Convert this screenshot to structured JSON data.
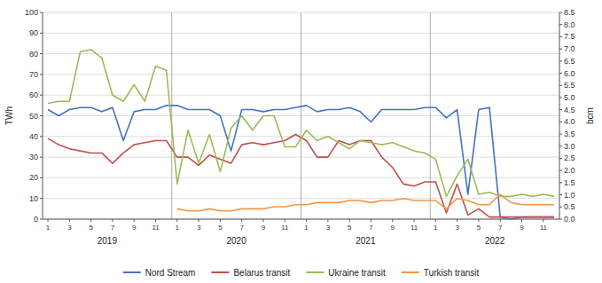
{
  "chart_data": {
    "type": "line",
    "categories": [
      "1",
      null,
      "3",
      null,
      "5",
      null,
      "7",
      null,
      "9",
      null,
      "11",
      null,
      "1",
      null,
      "3",
      null,
      "5",
      null,
      "7",
      null,
      "9",
      null,
      "11",
      null,
      "1",
      null,
      "3",
      null,
      "5",
      null,
      "7",
      null,
      "9",
      null,
      "11",
      null,
      "1",
      null,
      "3",
      null,
      "5",
      null,
      "7",
      null,
      "9",
      null,
      "11",
      null
    ],
    "category_groups": [
      2019,
      2020,
      2021,
      2022
    ],
    "series": [
      {
        "name": "Nord Stream",
        "color": "#4472C4",
        "values": [
          53,
          50,
          53,
          54,
          54,
          52,
          54,
          38,
          52,
          53,
          53,
          55,
          55,
          53,
          53,
          53,
          50,
          33,
          53,
          53,
          52,
          53,
          53,
          54,
          55,
          52,
          53,
          53,
          54,
          52,
          47,
          53,
          53,
          53,
          53,
          54,
          54,
          49,
          53,
          12,
          53,
          54,
          1,
          0,
          1,
          1,
          1,
          1
        ]
      },
      {
        "name": "Belarus transit",
        "color": "#C0504D",
        "values": [
          39,
          36,
          34,
          33,
          32,
          32,
          27,
          32,
          36,
          37,
          38,
          38,
          30,
          30,
          26,
          31,
          29,
          27,
          36,
          37,
          36,
          37,
          38,
          41,
          38,
          30,
          30,
          38,
          36,
          38,
          38,
          30,
          25,
          17,
          16,
          18,
          18,
          3,
          17,
          2,
          5,
          1,
          1,
          1,
          1,
          1,
          1,
          1
        ]
      },
      {
        "name": "Ukraine transit",
        "color": "#9BBB59",
        "values": [
          56,
          57,
          57,
          81,
          82,
          78,
          60,
          57,
          65,
          57,
          74,
          72,
          17,
          43,
          27,
          41,
          23,
          44,
          50,
          43,
          50,
          50,
          35,
          35,
          43,
          38,
          40,
          37,
          34,
          38,
          37,
          36,
          37,
          35,
          33,
          32,
          29,
          11,
          21,
          29,
          12,
          13,
          11,
          11,
          12,
          11,
          12,
          11
        ]
      },
      {
        "name": "Turkish transit",
        "color": "#F79646",
        "values": [
          null,
          null,
          null,
          null,
          null,
          null,
          null,
          null,
          null,
          null,
          null,
          null,
          5,
          4,
          4,
          5,
          4,
          4,
          5,
          5,
          5,
          6,
          6,
          7,
          7,
          8,
          8,
          8,
          9,
          9,
          8,
          9,
          9,
          10,
          9,
          9,
          9,
          5,
          10,
          9,
          7,
          7,
          12,
          8,
          7,
          7,
          7,
          7
        ]
      }
    ],
    "ylabel": "TWh",
    "y2label": "bcm",
    "ylim": [
      0,
      100
    ],
    "yticks": [
      0,
      10,
      20,
      30,
      40,
      50,
      60,
      70,
      80,
      90,
      100
    ],
    "y2lim": [
      0,
      8.5
    ],
    "y2ticks": [
      {
        "value": 0,
        "label": "0.0"
      },
      0.5,
      {
        "value": 1,
        "label": "1.0"
      },
      1.5,
      {
        "value": 2,
        "label": "2.0"
      },
      2.5,
      {
        "value": 3,
        "label": "3.0"
      },
      3.5,
      {
        "value": 4,
        "label": "4.0"
      },
      4.5,
      {
        "value": 5,
        "label": "5.0"
      },
      5.5,
      {
        "value": 6,
        "label": "6.0"
      },
      6.5,
      {
        "value": 7,
        "label": "7.0"
      },
      7.5,
      {
        "value": 8,
        "label": "8.0"
      },
      8.5
    ],
    "grid": true,
    "legend": "bottom"
  }
}
